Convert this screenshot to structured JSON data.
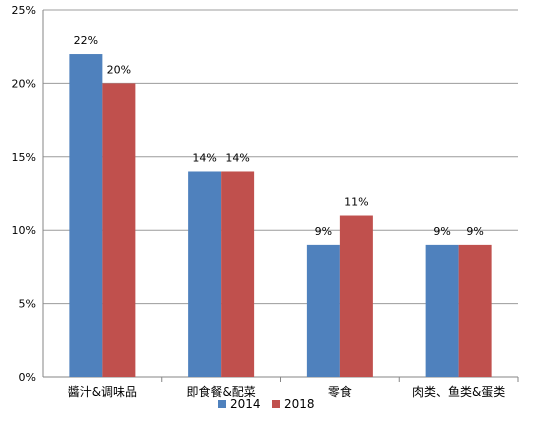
{
  "chart_data": {
    "type": "bar",
    "categories": [
      "醬汁&调味品",
      "即食餐&配菜",
      "零食",
      "肉类、鱼类&蛋类"
    ],
    "series": [
      {
        "name": "2014",
        "values": [
          22,
          14,
          9,
          9
        ],
        "labels": [
          "22%",
          "14%",
          "9%",
          "9%"
        ],
        "color": "#4F81BD"
      },
      {
        "name": "2018",
        "values": [
          20,
          14,
          11,
          9
        ],
        "labels": [
          "20%",
          "14%",
          "11%",
          "9%"
        ],
        "color": "#C0504D"
      }
    ],
    "title": "",
    "xlabel": "",
    "ylabel": "",
    "ylim": [
      0,
      25
    ],
    "yticks": [
      0,
      5,
      10,
      15,
      20,
      25
    ],
    "ytick_labels": [
      "0%",
      "5%",
      "10%",
      "15%",
      "20%",
      "25%"
    ],
    "grid": true,
    "legend": "bottom",
    "colors": {
      "grid": "#9C9C9C",
      "axis": "#868686"
    }
  }
}
